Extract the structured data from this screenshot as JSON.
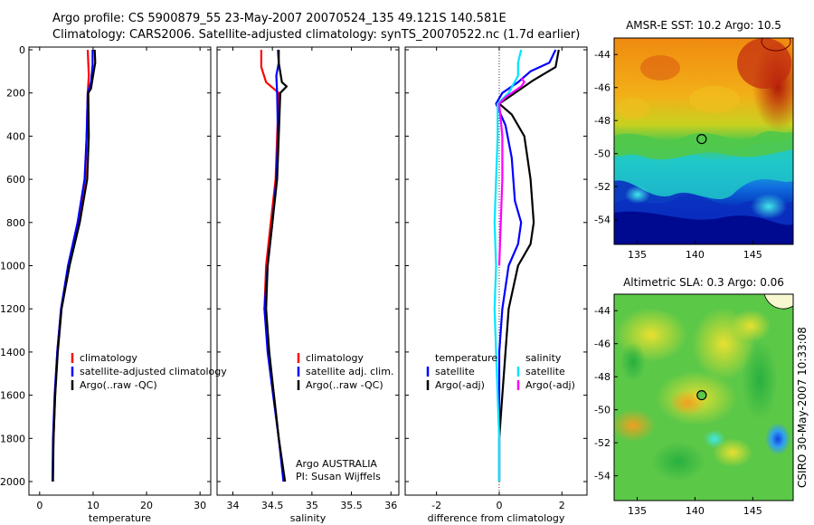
{
  "title_line1": "Argo profile: CS 5900879_55 23-May-2007 20070524_135 49.121S 140.581E",
  "title_line2": "Climatology: CARS2006. Satellite-adjusted climatology: synTS_20070522.nc (1.7d earlier)",
  "side_caption": "CSIRO 30-May-2007 10:33:08",
  "colors": {
    "climatology": "#ff0000",
    "satellite": "#0000ff",
    "argo": "#000000",
    "sat_salinity": "#00e5ff",
    "argo_salinity": "#ff00ff"
  },
  "chart_data": [
    {
      "type": "line",
      "name": "temperature",
      "xlabel": "temperature",
      "xlim": [
        -2,
        32
      ],
      "ylim": [
        2050,
        0
      ],
      "xticks": [
        0,
        10,
        20,
        30
      ],
      "yticks": [
        0,
        200,
        400,
        600,
        800,
        1000,
        1200,
        1400,
        1600,
        1800,
        2000
      ],
      "legend": [
        "climatology",
        "satellite-adjusted climatology",
        "Argo(..raw -QC)"
      ],
      "series": [
        {
          "name": "climatology",
          "color": "#ff0000",
          "points": [
            [
              9.0,
              0
            ],
            [
              9.1,
              60
            ],
            [
              9.2,
              120
            ],
            [
              9.0,
              200
            ],
            [
              8.8,
              400
            ],
            [
              8.5,
              600
            ],
            [
              7.2,
              800
            ],
            [
              5.4,
              1000
            ],
            [
              4.0,
              1200
            ],
            [
              3.3,
              1400
            ],
            [
              2.9,
              1600
            ],
            [
              2.6,
              1800
            ],
            [
              2.5,
              1880
            ]
          ]
        },
        {
          "name": "satellite-adjusted climatology",
          "color": "#0000ff",
          "points": [
            [
              9.9,
              0
            ],
            [
              9.9,
              70
            ],
            [
              9.6,
              150
            ],
            [
              9.0,
              200
            ],
            [
              8.8,
              400
            ],
            [
              8.4,
              600
            ],
            [
              7.1,
              800
            ],
            [
              5.3,
              1000
            ],
            [
              4.0,
              1200
            ],
            [
              3.3,
              1400
            ],
            [
              2.8,
              1600
            ],
            [
              2.5,
              1800
            ],
            [
              2.4,
              2000
            ]
          ]
        },
        {
          "name": "Argo(..raw -QC)",
          "color": "#000000",
          "points": [
            [
              10.3,
              0
            ],
            [
              10.4,
              60
            ],
            [
              10.0,
              120
            ],
            [
              9.6,
              180
            ],
            [
              9.1,
              200
            ],
            [
              9.2,
              400
            ],
            [
              8.9,
              600
            ],
            [
              7.5,
              800
            ],
            [
              5.6,
              1000
            ],
            [
              4.1,
              1200
            ],
            [
              3.4,
              1400
            ],
            [
              2.9,
              1600
            ],
            [
              2.6,
              1800
            ],
            [
              2.5,
              2000
            ]
          ]
        }
      ]
    },
    {
      "type": "line",
      "name": "salinity",
      "xlabel": "salinity",
      "xlim": [
        33.8,
        36.1
      ],
      "ylim": [
        2050,
        0
      ],
      "xticks": [
        "34",
        "34.5",
        "35",
        "35.5",
        "36"
      ],
      "xtick_values": [
        34,
        34.5,
        35,
        35.5,
        36
      ],
      "legend": [
        "climatology",
        "satellite adj. clim.",
        "Argo(..raw -QC)"
      ],
      "annotation": [
        "Argo AUSTRALIA",
        "PI: Susan Wijffels"
      ],
      "series": [
        {
          "name": "climatology",
          "color": "#ff0000",
          "points": [
            [
              34.36,
              0
            ],
            [
              34.36,
              80
            ],
            [
              34.42,
              150
            ],
            [
              34.58,
              200
            ],
            [
              34.56,
              400
            ],
            [
              34.54,
              600
            ],
            [
              34.48,
              800
            ],
            [
              34.42,
              1000
            ],
            [
              34.4,
              1200
            ],
            [
              34.45,
              1400
            ],
            [
              34.52,
              1600
            ],
            [
              34.58,
              1800
            ],
            [
              34.65,
              2000
            ]
          ]
        },
        {
          "name": "satellite adj. clim.",
          "color": "#0000ff",
          "points": [
            [
              34.57,
              0
            ],
            [
              34.58,
              60
            ],
            [
              34.55,
              120
            ],
            [
              34.56,
              200
            ],
            [
              34.57,
              400
            ],
            [
              34.55,
              600
            ],
            [
              34.5,
              800
            ],
            [
              34.44,
              1000
            ],
            [
              34.4,
              1200
            ],
            [
              34.44,
              1400
            ],
            [
              34.51,
              1600
            ],
            [
              34.58,
              1800
            ],
            [
              34.64,
              2000
            ]
          ]
        },
        {
          "name": "Argo(..raw -QC)",
          "color": "#000000",
          "points": [
            [
              34.58,
              0
            ],
            [
              34.58,
              60
            ],
            [
              34.62,
              150
            ],
            [
              34.68,
              170
            ],
            [
              34.6,
              200
            ],
            [
              34.58,
              400
            ],
            [
              34.56,
              600
            ],
            [
              34.5,
              800
            ],
            [
              34.44,
              1000
            ],
            [
              34.42,
              1200
            ],
            [
              34.46,
              1400
            ],
            [
              34.52,
              1600
            ],
            [
              34.58,
              1800
            ],
            [
              34.66,
              2000
            ]
          ]
        }
      ]
    },
    {
      "type": "line",
      "name": "difference from climatology",
      "xlabel": "difference from climatology",
      "xlim": [
        -3,
        2.8
      ],
      "ylim": [
        2050,
        0
      ],
      "xticks": [
        -2,
        0,
        2
      ],
      "legend_groups": [
        {
          "title": "temperature",
          "items": [
            "satellite",
            "Argo(-adj)"
          ]
        },
        {
          "title": "salinity",
          "items": [
            "satellite",
            "Argo(-adj)"
          ]
        }
      ],
      "series": [
        {
          "name": "temperature satellite",
          "color": "#0000ff",
          "points": [
            [
              1.8,
              0
            ],
            [
              1.6,
              60
            ],
            [
              1.0,
              100
            ],
            [
              0.6,
              150
            ],
            [
              0.1,
              200
            ],
            [
              -0.1,
              250
            ],
            [
              0.2,
              350
            ],
            [
              0.4,
              500
            ],
            [
              0.5,
              700
            ],
            [
              0.7,
              800
            ],
            [
              0.6,
              900
            ],
            [
              0.3,
              1000
            ],
            [
              0.1,
              1200
            ],
            [
              0,
              1400
            ],
            [
              0,
              1600
            ],
            [
              0,
              1800
            ],
            [
              0,
              2000
            ]
          ]
        },
        {
          "name": "temperature Argo(-adj)",
          "color": "#000000",
          "points": [
            [
              1.9,
              0
            ],
            [
              1.8,
              80
            ],
            [
              1.1,
              140
            ],
            [
              0.5,
              200
            ],
            [
              0,
              250
            ],
            [
              0.4,
              300
            ],
            [
              0.8,
              400
            ],
            [
              0.9,
              500
            ],
            [
              1.0,
              600
            ],
            [
              1.1,
              800
            ],
            [
              1.0,
              900
            ],
            [
              0.6,
              1000
            ],
            [
              0.3,
              1200
            ],
            [
              0.2,
              1400
            ],
            [
              0.1,
              1600
            ],
            [
              0,
              1800
            ],
            [
              0,
              2000
            ]
          ]
        },
        {
          "name": "salinity satellite",
          "color": "#00e5ff",
          "points": [
            [
              0.7,
              0
            ],
            [
              0.6,
              60
            ],
            [
              0.6,
              120
            ],
            [
              0.3,
              200
            ],
            [
              -0.05,
              250
            ],
            [
              -0.05,
              400
            ],
            [
              -0.1,
              600
            ],
            [
              -0.15,
              800
            ],
            [
              -0.1,
              1000
            ],
            [
              -0.15,
              1200
            ],
            [
              -0.1,
              1400
            ],
            [
              -0.05,
              1600
            ],
            [
              0,
              1800
            ],
            [
              0,
              2000
            ]
          ]
        },
        {
          "name": "salinity Argo(-adj)",
          "color": "#ff00ff",
          "points": [
            [
              0.7,
              130
            ],
            [
              0.8,
              150
            ],
            [
              0.7,
              170
            ],
            [
              0.2,
              220
            ],
            [
              0,
              250
            ],
            [
              0.1,
              400
            ],
            [
              0.1,
              600
            ],
            [
              0.05,
              800
            ],
            [
              0,
              1000
            ]
          ]
        }
      ]
    },
    {
      "type": "heatmap",
      "name": "sst-map",
      "title": "AMSR-E SST: 10.2  Argo: 10.5",
      "xlim": [
        133,
        148.5
      ],
      "ylim": [
        -55.5,
        -43
      ],
      "xticks": [
        135,
        140,
        145
      ],
      "yticks": [
        -44,
        -46,
        -48,
        -50,
        -52,
        -54
      ],
      "marker": {
        "lon": 140.58,
        "lat": -49.12
      }
    },
    {
      "type": "heatmap",
      "name": "sla-map",
      "title": "Altimetric SLA: 0.3  Argo: 0.06",
      "xlim": [
        133,
        148.5
      ],
      "ylim": [
        -55.5,
        -43
      ],
      "xticks": [
        135,
        140,
        145
      ],
      "yticks": [
        -44,
        -46,
        -48,
        -50,
        -52,
        -54
      ],
      "marker": {
        "lon": 140.58,
        "lat": -49.12
      }
    }
  ]
}
